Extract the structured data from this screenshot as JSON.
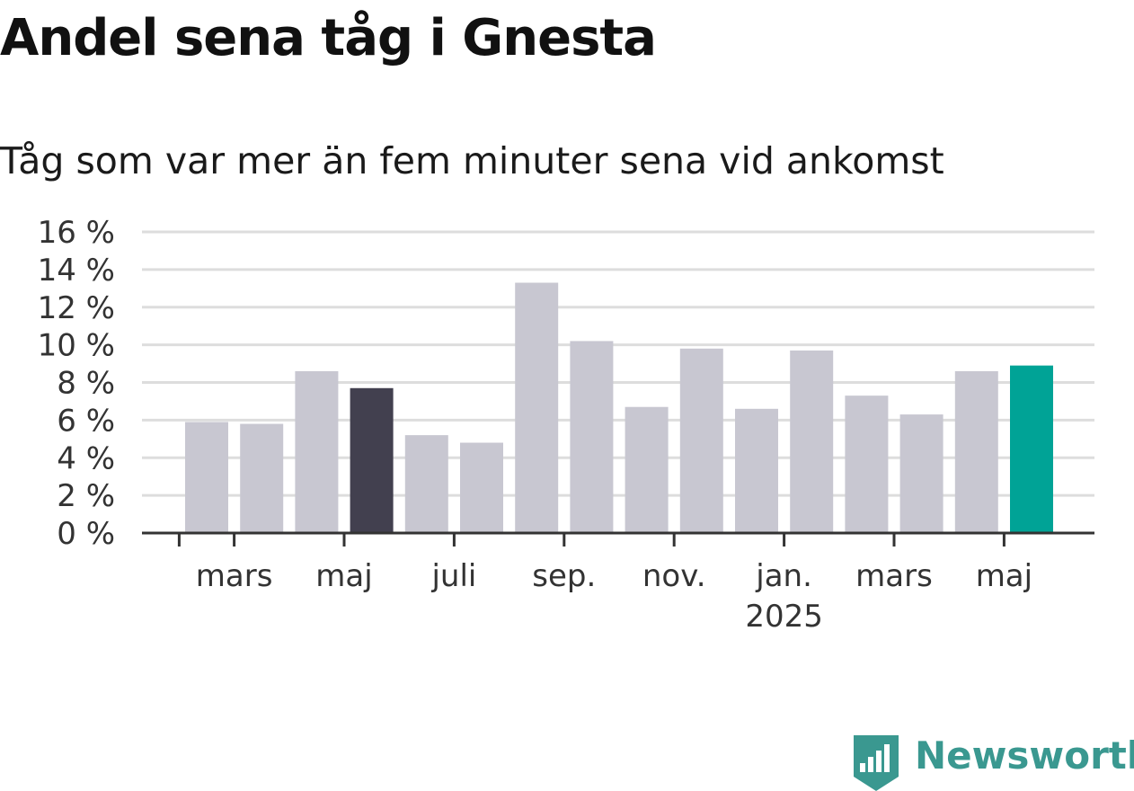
{
  "colors": {
    "bar_default": "#c8c7d1",
    "bar_highlight_dark": "#42404f",
    "bar_highlight_teal": "#00a396",
    "grid": "#dddddd",
    "axis": "#333333",
    "brand": "#3a9890"
  },
  "chart_data": {
    "type": "bar",
    "title": "Andel sena tåg i Gnesta",
    "subtitle": "Tåg som var mer än fem minuter sena vid ankomst",
    "xlabel": "",
    "ylabel": "",
    "ylim": [
      0,
      16
    ],
    "yticks": [
      0,
      2,
      4,
      6,
      8,
      10,
      12,
      14,
      16
    ],
    "ytick_labels": [
      "0 %",
      "2 %",
      "4 %",
      "6 %",
      "8 %",
      "10 %",
      "12 %",
      "14 %",
      "16 %"
    ],
    "x_tick_labels": [
      {
        "month": "2024-03",
        "label": "mars",
        "sublabel": ""
      },
      {
        "month": "2024-05",
        "label": "maj",
        "sublabel": ""
      },
      {
        "month": "2024-07",
        "label": "juli",
        "sublabel": ""
      },
      {
        "month": "2024-09",
        "label": "sep.",
        "sublabel": ""
      },
      {
        "month": "2024-11",
        "label": "nov.",
        "sublabel": ""
      },
      {
        "month": "2025-01",
        "label": "jan.",
        "sublabel": "2025"
      },
      {
        "month": "2025-03",
        "label": "mars",
        "sublabel": ""
      },
      {
        "month": "2025-05",
        "label": "maj",
        "sublabel": ""
      }
    ],
    "grid": true,
    "legend": "none",
    "series": [
      {
        "points": [
          {
            "month": "2024-02",
            "value": 5.9
          },
          {
            "month": "2024-03",
            "value": 5.8
          },
          {
            "month": "2024-04",
            "value": 8.6
          },
          {
            "month": "2024-05",
            "value": 7.7,
            "highlight": "dark"
          },
          {
            "month": "2024-06",
            "value": 5.2
          },
          {
            "month": "2024-07",
            "value": 4.8
          },
          {
            "month": "2024-08",
            "value": 13.3
          },
          {
            "month": "2024-09",
            "value": 10.2
          },
          {
            "month": "2024-10",
            "value": 6.7
          },
          {
            "month": "2024-11",
            "value": 9.8
          },
          {
            "month": "2024-12",
            "value": 6.6
          },
          {
            "month": "2025-01",
            "value": 9.7
          },
          {
            "month": "2025-02",
            "value": 7.3
          },
          {
            "month": "2025-03",
            "value": 6.3
          },
          {
            "month": "2025-04",
            "value": 8.6
          },
          {
            "month": "2025-05",
            "value": 8.9,
            "highlight": "teal"
          }
        ]
      }
    ]
  },
  "brand": {
    "name": "Newsworthy",
    "logo_icon": "newsworthy-bar-chart-badge-icon"
  }
}
